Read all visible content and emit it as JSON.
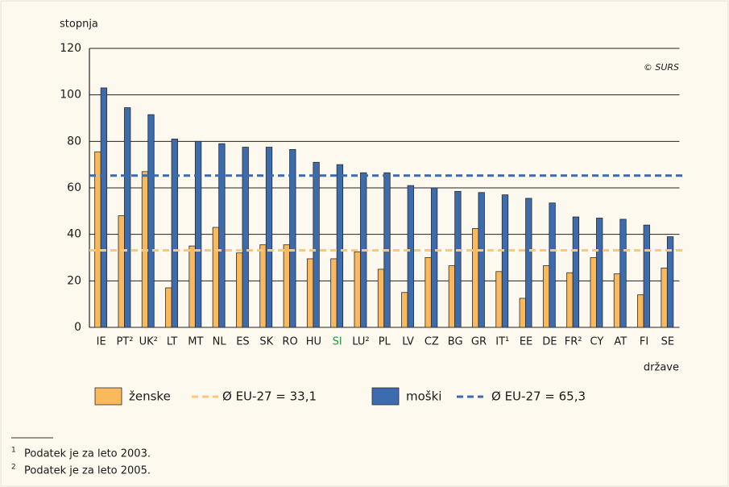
{
  "chart_data": {
    "type": "bar",
    "y_label": "stopnja",
    "x_label": "države",
    "source": "© SURS",
    "categories": [
      "IE",
      "PT²",
      "UK²",
      "LT",
      "MT",
      "NL",
      "ES",
      "SK",
      "RO",
      "HU",
      "SI",
      "LU²",
      "PL",
      "LV",
      "CZ",
      "BG",
      "GR",
      "IT¹",
      "EE",
      "DE",
      "FR²",
      "CY",
      "AT",
      "FI",
      "SE"
    ],
    "series": [
      {
        "name": "ženske",
        "color": "#f9b95c",
        "values": [
          75.5,
          48,
          67,
          17,
          35,
          43,
          32,
          35.5,
          35.5,
          29.5,
          29.5,
          32.5,
          25,
          15,
          30,
          26.5,
          42.5,
          24,
          12.5,
          26.5,
          23.5,
          30,
          23,
          14,
          25.5
        ]
      },
      {
        "name": "moški",
        "color": "#3d6cae",
        "values": [
          103,
          94.5,
          91.5,
          81,
          80,
          79,
          77.5,
          77.5,
          76.5,
          71,
          70,
          66.5,
          66.5,
          61,
          60,
          58.5,
          58,
          57,
          55.5,
          53.5,
          47.5,
          47,
          46.5,
          44,
          39
        ]
      }
    ],
    "reference_lines": [
      {
        "value": 33.1,
        "label": "Ø EU-27 = 33,1",
        "color": "#fbc67e"
      },
      {
        "value": 65.3,
        "label": "Ø EU-27 = 65,3",
        "color": "#3d6cae"
      }
    ],
    "highlight": {
      "category_index": 10,
      "color": "#1e9a3c"
    },
    "ylim": [
      0,
      120
    ],
    "yticks": [
      0,
      20,
      40,
      60,
      80,
      100,
      120
    ],
    "grid": true,
    "footnotes": [
      {
        "mark": "1",
        "text": "Podatek je za leto 2003."
      },
      {
        "mark": "2",
        "text": "Podatek je za leto 2005."
      }
    ]
  }
}
